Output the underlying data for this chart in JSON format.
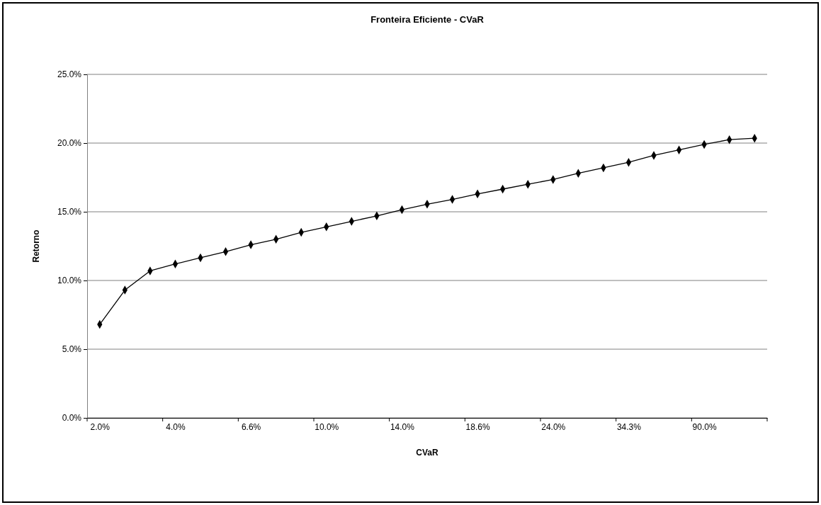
{
  "chart_data": {
    "type": "line",
    "title": "Fronteira Eficiente - CVaR",
    "xlabel": "CVaR",
    "ylabel": "Retorno",
    "categories": [
      "2.0%",
      null,
      null,
      "4.0%",
      null,
      null,
      "6.6%",
      null,
      null,
      "10.0%",
      null,
      null,
      "14.0%",
      null,
      null,
      "18.6%",
      null,
      null,
      "24.0%",
      null,
      null,
      "34.3%",
      null,
      null,
      "90.0%",
      null,
      null
    ],
    "series": [
      {
        "color": "#000000",
        "values": [
          6.8,
          9.3,
          10.7,
          11.2,
          11.65,
          12.1,
          12.6,
          13.0,
          13.5,
          13.9,
          14.3,
          14.7,
          15.15,
          15.55,
          15.9,
          16.3,
          16.65,
          17.0,
          17.35,
          17.8,
          18.2,
          18.6,
          19.1,
          19.5,
          19.9,
          20.25,
          20.35
        ]
      }
    ],
    "ylim": [
      0,
      25
    ],
    "yticks": [
      {
        "value": 0,
        "label": "0.0%"
      },
      {
        "value": 5,
        "label": "5.0%"
      },
      {
        "value": 10,
        "label": "10.0%"
      },
      {
        "value": 15,
        "label": "15.0%"
      },
      {
        "value": 20,
        "label": "20.0%"
      },
      {
        "value": 25,
        "label": "25.0%"
      }
    ],
    "grid": "y",
    "legend": false,
    "marker": "diamond",
    "line_style": "solid"
  }
}
